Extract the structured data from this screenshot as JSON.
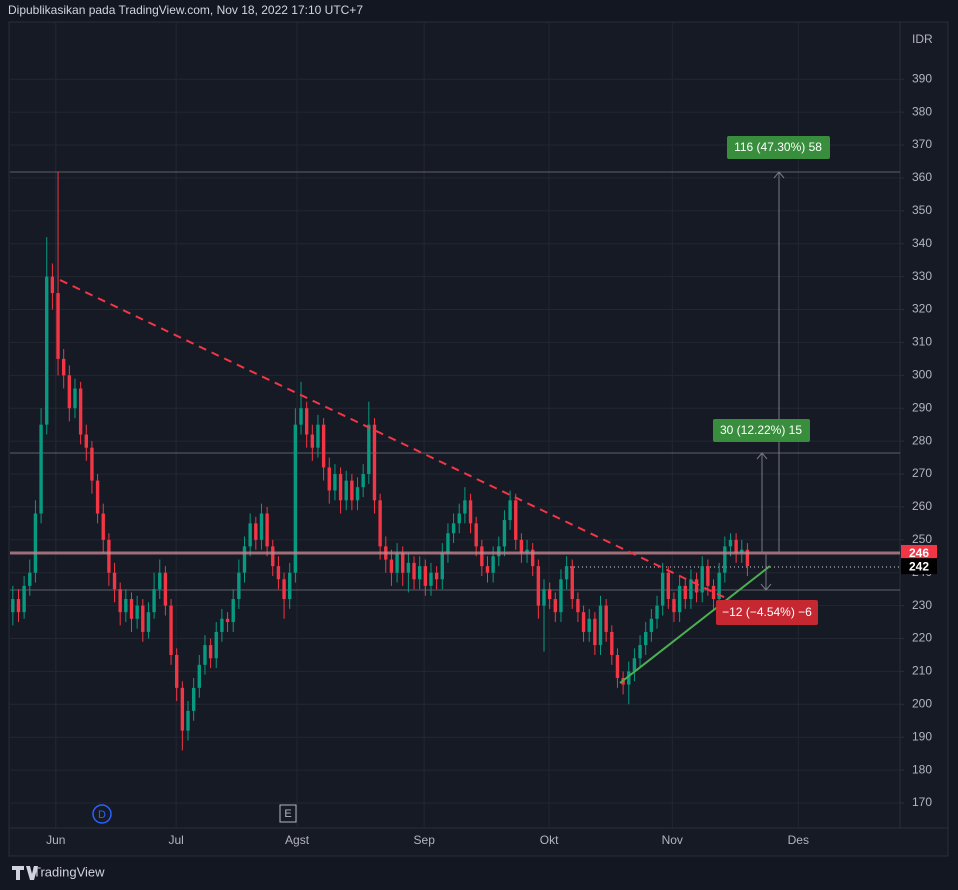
{
  "header": "Dipublikasikan pada TradingView.com, Nov 18, 2022 17:10 UTC+7",
  "footer": "TradingView",
  "chart_data": {
    "type": "candlestick",
    "currency": "IDR",
    "up_color": "#089981",
    "down_color": "#f23645",
    "grid": true,
    "ylim": [
      162.4,
      407.4
    ],
    "yticks": [
      170,
      180,
      190,
      200,
      210,
      220,
      230,
      240,
      250,
      260,
      270,
      280,
      290,
      300,
      310,
      320,
      330,
      340,
      350,
      360,
      370,
      380,
      390
    ],
    "xlim": [
      -0.5,
      157
    ],
    "xticks": [
      {
        "value": 7.6,
        "label": "Jun"
      },
      {
        "value": 28.9,
        "label": "Jul"
      },
      {
        "value": 50.3,
        "label": "Agst"
      },
      {
        "value": 72.8,
        "label": "Sep"
      },
      {
        "value": 94.9,
        "label": "Okt"
      },
      {
        "value": 116.7,
        "label": "Nov"
      },
      {
        "value": 139,
        "label": "Des"
      }
    ],
    "open": [
      228,
      232,
      228,
      236,
      240,
      258,
      285,
      330,
      325,
      305,
      300,
      290,
      296,
      282,
      278,
      268,
      258,
      250,
      240,
      235,
      228,
      232,
      226,
      230,
      222,
      228,
      235,
      240,
      230,
      215,
      205,
      192,
      198,
      205,
      212,
      218,
      214,
      222,
      226,
      225,
      232,
      240,
      248,
      255,
      250,
      258,
      248,
      242,
      238,
      232,
      240,
      285,
      290,
      282,
      278,
      285,
      272,
      265,
      270,
      262,
      268,
      262,
      266,
      270,
      285,
      262,
      248,
      244,
      240,
      246,
      240,
      243,
      238,
      242,
      236,
      240,
      238,
      246,
      252,
      255,
      258,
      262,
      255,
      248,
      242,
      240,
      245,
      248,
      256,
      262,
      250,
      246,
      247,
      242,
      230,
      235,
      232,
      228,
      238,
      242,
      232,
      228,
      222,
      226,
      218,
      230,
      222,
      215,
      208,
      206,
      210,
      214,
      218,
      222,
      226,
      230,
      240,
      232,
      228,
      236,
      232,
      238,
      234,
      242,
      236,
      232,
      240,
      248,
      250,
      246,
      247
    ],
    "high": [
      236,
      235,
      239,
      244,
      262,
      290,
      342,
      334,
      362,
      308,
      303,
      299,
      298,
      285,
      280,
      270,
      261,
      252,
      243,
      237,
      235,
      234,
      233,
      232,
      231,
      240,
      244,
      242,
      232,
      217,
      207,
      201,
      208,
      215,
      221,
      220,
      225,
      229,
      228,
      235,
      244,
      251,
      258,
      257,
      261,
      260,
      250,
      245,
      240,
      243,
      290,
      298,
      292,
      285,
      288,
      287,
      275,
      273,
      272,
      271,
      270,
      269,
      273,
      292,
      287,
      264,
      251,
      247,
      249,
      248,
      246,
      245,
      245,
      244,
      243,
      242,
      249,
      255,
      258,
      261,
      266,
      264,
      257,
      250,
      245,
      248,
      251,
      259,
      265,
      264,
      252,
      250,
      249,
      244,
      238,
      237,
      234,
      241,
      245,
      244,
      234,
      230,
      229,
      228,
      233,
      232,
      224,
      217,
      210,
      213,
      217,
      221,
      225,
      229,
      233,
      243,
      242,
      234,
      239,
      238,
      241,
      240,
      245,
      244,
      238,
      243,
      251,
      252,
      252,
      250,
      249
    ],
    "low": [
      224,
      225,
      226,
      233,
      237,
      255,
      282,
      320,
      300,
      296,
      286,
      287,
      279,
      274,
      264,
      255,
      246,
      236,
      231,
      224,
      225,
      222,
      223,
      219,
      220,
      226,
      232,
      227,
      212,
      201,
      186,
      189,
      195,
      202,
      209,
      211,
      211,
      219,
      222,
      222,
      229,
      237,
      245,
      247,
      247,
      245,
      239,
      235,
      226,
      229,
      237,
      282,
      278,
      274,
      275,
      268,
      261,
      262,
      258,
      259,
      259,
      259,
      263,
      267,
      258,
      244,
      240,
      236,
      237,
      236,
      234,
      235,
      235,
      233,
      233,
      235,
      235,
      243,
      249,
      252,
      255,
      252,
      245,
      239,
      237,
      237,
      242,
      245,
      253,
      247,
      243,
      243,
      239,
      226,
      216,
      229,
      225,
      225,
      235,
      229,
      225,
      219,
      219,
      215,
      215,
      219,
      212,
      205,
      203,
      200,
      207,
      211,
      215,
      219,
      223,
      227,
      229,
      225,
      225,
      229,
      229,
      231,
      231,
      233,
      229,
      229,
      237,
      245,
      243,
      243,
      239
    ],
    "close": [
      232,
      228,
      236,
      240,
      258,
      285,
      330,
      325,
      305,
      300,
      290,
      296,
      282,
      278,
      268,
      258,
      250,
      240,
      235,
      228,
      232,
      226,
      230,
      222,
      228,
      235,
      240,
      230,
      215,
      205,
      192,
      198,
      205,
      212,
      218,
      214,
      222,
      226,
      225,
      232,
      240,
      248,
      255,
      250,
      258,
      248,
      242,
      238,
      232,
      240,
      285,
      290,
      282,
      278,
      285,
      272,
      265,
      270,
      262,
      268,
      262,
      266,
      270,
      285,
      262,
      248,
      244,
      240,
      246,
      240,
      243,
      238,
      242,
      236,
      240,
      238,
      246,
      252,
      255,
      258,
      262,
      255,
      248,
      242,
      240,
      245,
      248,
      256,
      262,
      250,
      246,
      247,
      242,
      230,
      235,
      232,
      228,
      238,
      242,
      232,
      228,
      222,
      226,
      218,
      230,
      222,
      215,
      208,
      206,
      210,
      214,
      218,
      222,
      226,
      230,
      240,
      232,
      228,
      236,
      232,
      238,
      234,
      242,
      236,
      232,
      240,
      248,
      250,
      246,
      247,
      242
    ],
    "price_labels": [
      {
        "value": 246,
        "color": "#f23645"
      },
      {
        "value": 242,
        "color": "#000000"
      }
    ],
    "measures": [
      "116 (47.30%) 58",
      "30 (12.22%) 15",
      "−12 (−4.54%) −6"
    ],
    "events": [
      "D",
      "E"
    ]
  }
}
